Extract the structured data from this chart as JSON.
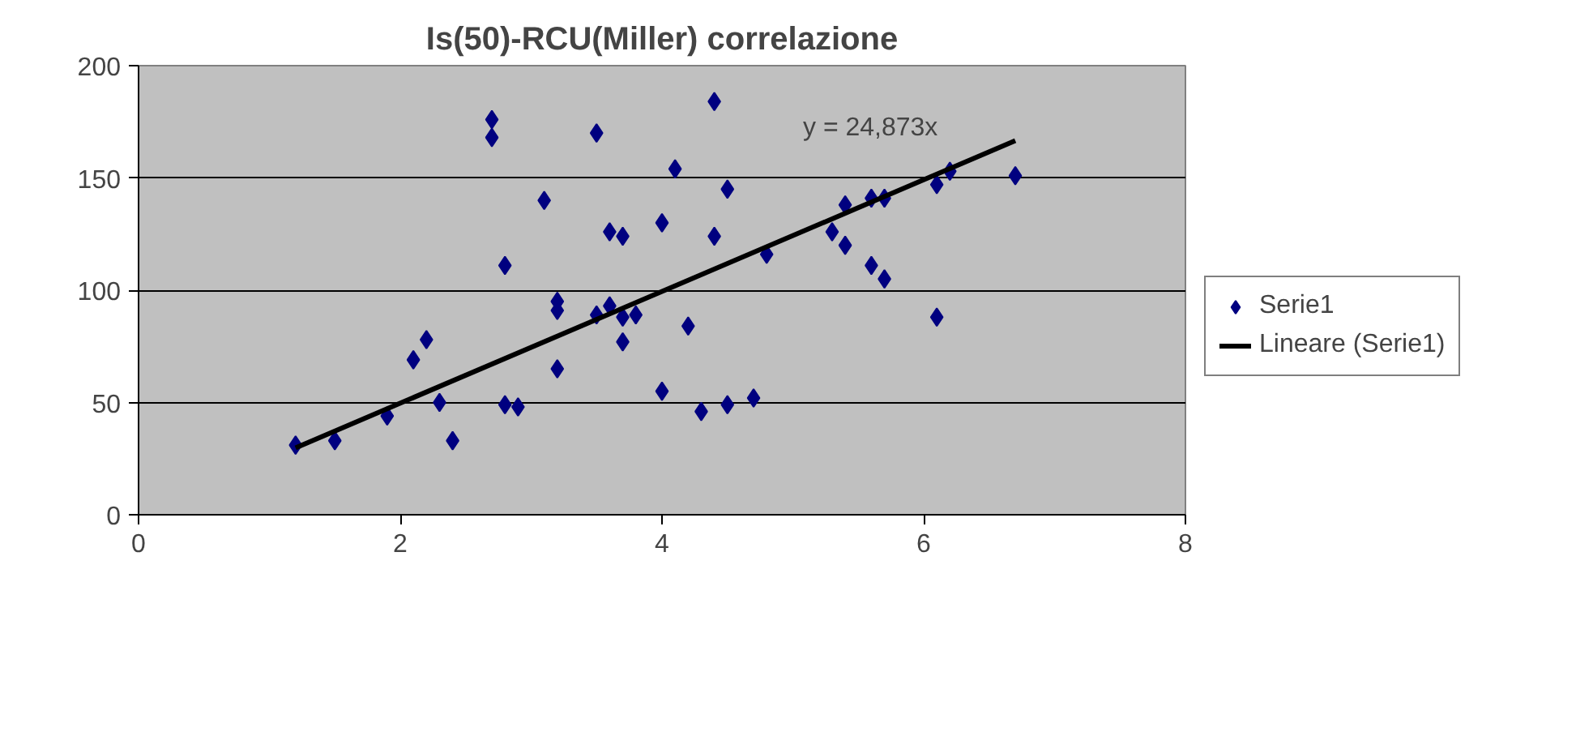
{
  "chart_data": {
    "type": "scatter",
    "title": "Is(50)-RCU(Miller) correlazione",
    "xlim": [
      0,
      8
    ],
    "xticks": [
      0,
      2,
      4,
      6,
      8
    ],
    "ylim": [
      0,
      200
    ],
    "yticks": [
      0,
      50,
      100,
      150,
      200
    ],
    "grid": "y",
    "legend": "right",
    "series": [
      {
        "name": "Serie1",
        "marker": "diamond",
        "color": "#000080",
        "x": [
          1.2,
          1.5,
          1.9,
          2.1,
          2.2,
          2.3,
          2.4,
          2.7,
          2.7,
          2.8,
          2.8,
          2.9,
          3.1,
          3.2,
          3.2,
          3.2,
          3.5,
          3.5,
          3.6,
          3.6,
          3.7,
          3.7,
          3.7,
          3.8,
          4.0,
          4.0,
          4.1,
          4.2,
          4.3,
          4.4,
          4.4,
          4.5,
          4.5,
          4.7,
          4.8,
          5.3,
          5.4,
          5.4,
          5.6,
          5.6,
          5.7,
          5.7,
          6.1,
          6.1,
          6.2,
          6.7
        ],
        "values": [
          31,
          33,
          44,
          69,
          78,
          50,
          33,
          176,
          168,
          111,
          49,
          48,
          140,
          95,
          91,
          65,
          170,
          89,
          126,
          93,
          124,
          88,
          77,
          89,
          130,
          55,
          154,
          84,
          46,
          184,
          124,
          145,
          49,
          52,
          116,
          126,
          138,
          120,
          141,
          111,
          141,
          105,
          147,
          88,
          153,
          151
        ]
      },
      {
        "name": "Lineare (Serie1)",
        "type": "line",
        "color": "#000000",
        "x": [
          1.2,
          6.7
        ],
        "values": [
          29.8,
          166.6
        ]
      }
    ],
    "annotations": [
      "y = 24,873x"
    ]
  }
}
